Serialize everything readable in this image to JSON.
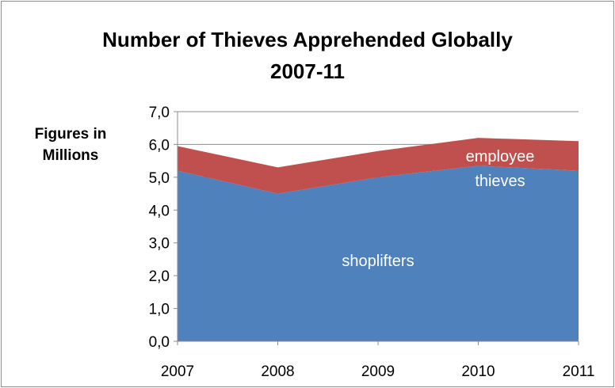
{
  "chart_data": {
    "type": "area",
    "stacked": true,
    "title": [
      "Number of Thieves Apprehended Globally",
      "2007-11"
    ],
    "ylabel": [
      "Figures in",
      "Millions"
    ],
    "xlabel": "",
    "categories": [
      "2007",
      "2008",
      "2009",
      "2010",
      "2011"
    ],
    "y_ticks": [
      "0,0",
      "1,0",
      "2,0",
      "3,0",
      "4,0",
      "5,0",
      "6,0",
      "7,0"
    ],
    "ylim": [
      0,
      7
    ],
    "grid": "horizontal",
    "legend": "none",
    "series": [
      {
        "name": "shoplifters",
        "values": [
          5.2,
          4.5,
          5.0,
          5.35,
          5.2
        ],
        "color": "#4f81bd",
        "label_color": "#ffffff"
      },
      {
        "name": "employee thieves",
        "values": [
          0.75,
          0.8,
          0.8,
          0.85,
          0.9
        ],
        "color": "#c0504d",
        "label_color": "#ffffff"
      }
    ],
    "series_labels": {
      "shoplifters": "shoplifters",
      "employee_line1": "employee",
      "employee_line2": "thieves"
    }
  }
}
